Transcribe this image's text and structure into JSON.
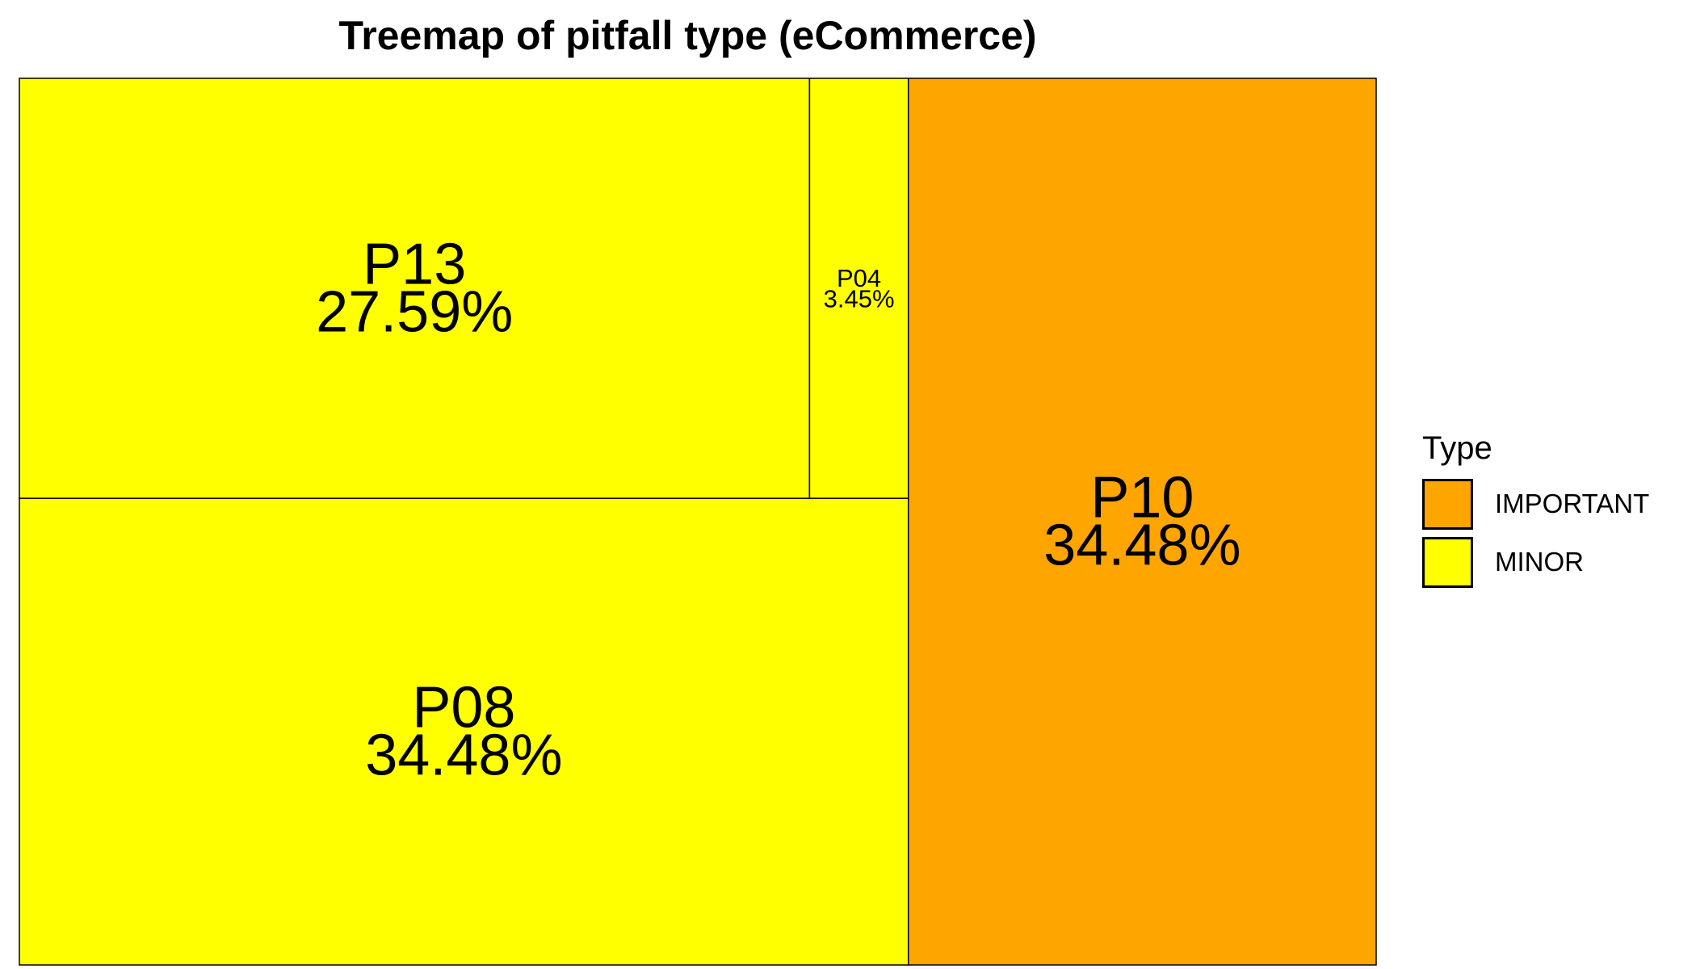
{
  "chart_data": {
    "type": "treemap",
    "title": "Treemap of pitfall type (eCommerce)",
    "legend": {
      "title": "Type",
      "position": "right",
      "entries": [
        {
          "label": "IMPORTANT",
          "color": "#FFA500"
        },
        {
          "label": "MINOR",
          "color": "#FFFF00"
        }
      ]
    },
    "tiles": [
      {
        "id": "P10",
        "label": "P10",
        "value_label": "34.48%",
        "percent": 34.48,
        "type": "IMPORTANT"
      },
      {
        "id": "P08",
        "label": "P08",
        "value_label": "34.48%",
        "percent": 34.48,
        "type": "MINOR"
      },
      {
        "id": "P13",
        "label": "P13",
        "value_label": "27.59%",
        "percent": 27.59,
        "type": "MINOR"
      },
      {
        "id": "P04",
        "label": "P04",
        "value_label": "3.45%",
        "percent": 3.45,
        "type": "MINOR"
      }
    ]
  }
}
